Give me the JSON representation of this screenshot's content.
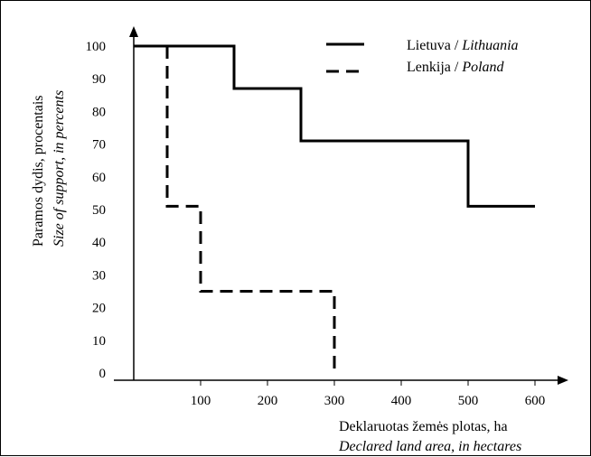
{
  "chart_data": {
    "type": "line",
    "step": true,
    "xlim": [
      0,
      600
    ],
    "ylim": [
      0,
      100
    ],
    "x_ticks": [
      100,
      200,
      300,
      400,
      500,
      600
    ],
    "y_ticks": [
      0,
      10,
      20,
      30,
      40,
      50,
      60,
      70,
      80,
      90,
      100
    ],
    "xlabel": {
      "line1": "Deklaruotas žemės plotas, ha",
      "line2": "Declared land area, in hectares"
    },
    "ylabel": {
      "line1": "Paramos dydis, procentais",
      "line2": "Size of support, in percents"
    },
    "legend_position": "top-right",
    "series": [
      {
        "name": "Lietuva / ",
        "name_italic": "Lithuania",
        "style": "solid",
        "color": "#000000",
        "points": [
          [
            0,
            100
          ],
          [
            150,
            100
          ],
          [
            150,
            87
          ],
          [
            250,
            87
          ],
          [
            250,
            71
          ],
          [
            500,
            71
          ],
          [
            500,
            51
          ],
          [
            600,
            51
          ]
        ]
      },
      {
        "name": "Lenkija / ",
        "name_italic": "Poland",
        "style": "dashed",
        "color": "#000000",
        "points": [
          [
            50,
            100
          ],
          [
            50,
            51
          ],
          [
            100,
            51
          ],
          [
            100,
            25
          ],
          [
            300,
            25
          ],
          [
            300,
            0
          ]
        ]
      }
    ]
  }
}
